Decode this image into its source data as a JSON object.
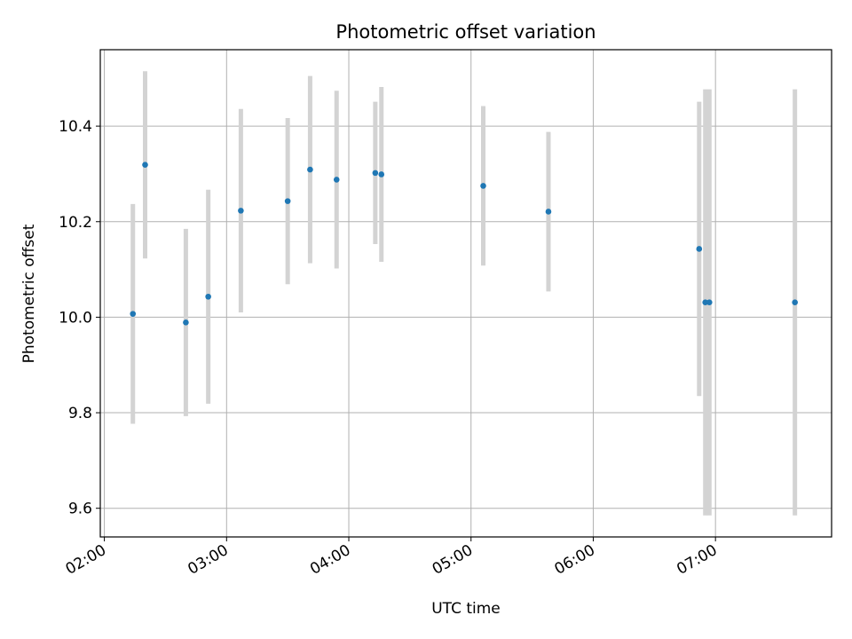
{
  "chart_data": {
    "type": "scatter",
    "title": "Photometric offset variation",
    "xlabel": "UTC time",
    "ylabel": "Photometric offset",
    "x_ticks": [
      "02:00",
      "03:00",
      "04:00",
      "05:00",
      "06:00",
      "07:00"
    ],
    "y_ticks": [
      "9.6",
      "9.8",
      "10.0",
      "10.2",
      "10.4"
    ],
    "xlim": [
      "01:58",
      "07:57"
    ],
    "ylim": [
      9.54,
      10.56
    ],
    "grid": true,
    "point_color": "#1f77b4",
    "errorbar_color": "#d3d3d3",
    "points": [
      {
        "x": "02:14",
        "y": 10.007,
        "yerr": 0.23
      },
      {
        "x": "02:20",
        "y": 10.319,
        "yerr": 0.196
      },
      {
        "x": "02:40",
        "y": 9.989,
        "yerr": 0.196
      },
      {
        "x": "02:51",
        "y": 10.043,
        "yerr": 0.224
      },
      {
        "x": "03:07",
        "y": 10.223,
        "yerr": 0.213
      },
      {
        "x": "03:30",
        "y": 10.243,
        "yerr": 0.174
      },
      {
        "x": "03:41",
        "y": 10.309,
        "yerr": 0.196
      },
      {
        "x": "03:54",
        "y": 10.288,
        "yerr": 0.186
      },
      {
        "x": "04:13",
        "y": 10.302,
        "yerr": 0.149
      },
      {
        "x": "04:16",
        "y": 10.299,
        "yerr": 0.183
      },
      {
        "x": "05:06",
        "y": 10.275,
        "yerr": 0.167
      },
      {
        "x": "05:38",
        "y": 10.221,
        "yerr": 0.167
      },
      {
        "x": "06:52",
        "y": 10.143,
        "yerr": 0.308
      },
      {
        "x": "06:55",
        "y": 10.031,
        "yerr": 0.446
      },
      {
        "x": "06:57",
        "y": 10.031,
        "yerr": 0.446
      },
      {
        "x": "07:39",
        "y": 10.031,
        "yerr": 0.446
      }
    ]
  }
}
